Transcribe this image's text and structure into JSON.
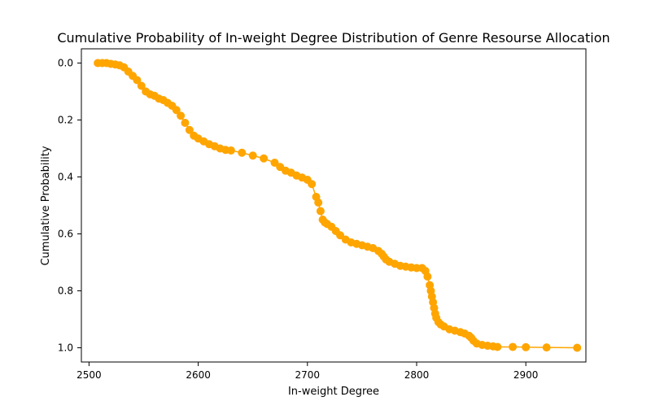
{
  "chart_data": {
    "type": "line",
    "title": "Cumulative Probability of In-weight Degree Distribution of Genre Resourse Allocation",
    "xlabel": "In-weight Degree",
    "ylabel": "Cumulative Probability",
    "xlim": [
      2493,
      2955
    ],
    "ylim": [
      1.05,
      -0.05
    ],
    "y_inverted": true,
    "x_ticks": [
      2500,
      2600,
      2700,
      2800,
      2900
    ],
    "x_tick_labels": [
      "2500",
      "2600",
      "2700",
      "2800",
      "2900"
    ],
    "y_ticks": [
      0.0,
      0.2,
      0.4,
      0.6,
      0.8,
      1.0
    ],
    "y_tick_labels": [
      "0.0",
      "0.2",
      "0.4",
      "0.6",
      "0.8",
      "1.0"
    ],
    "grid": false,
    "series": [
      {
        "name": "cumulative probability",
        "color": "#ffa500",
        "marker": "circle",
        "x": [
          2508,
          2512,
          2516,
          2520,
          2524,
          2528,
          2532,
          2536,
          2540,
          2544,
          2548,
          2552,
          2556,
          2560,
          2564,
          2568,
          2572,
          2576,
          2580,
          2584,
          2588,
          2592,
          2596,
          2600,
          2605,
          2610,
          2615,
          2620,
          2625,
          2630,
          2640,
          2650,
          2660,
          2670,
          2675,
          2680,
          2685,
          2690,
          2695,
          2700,
          2704,
          2708,
          2710,
          2712,
          2714,
          2716,
          2718,
          2722,
          2726,
          2730,
          2735,
          2740,
          2745,
          2750,
          2755,
          2760,
          2765,
          2768,
          2770,
          2772,
          2775,
          2780,
          2785,
          2790,
          2795,
          2800,
          2805,
          2808,
          2810,
          2812,
          2813,
          2814,
          2815,
          2816,
          2817,
          2818,
          2820,
          2822,
          2825,
          2830,
          2835,
          2840,
          2844,
          2848,
          2850,
          2852,
          2855,
          2860,
          2865,
          2870,
          2874,
          2888,
          2900,
          2919,
          2947
        ],
        "y": [
          0.0,
          0.0,
          0.0,
          0.003,
          0.005,
          0.008,
          0.015,
          0.03,
          0.045,
          0.06,
          0.08,
          0.1,
          0.11,
          0.115,
          0.125,
          0.13,
          0.14,
          0.15,
          0.165,
          0.185,
          0.21,
          0.235,
          0.255,
          0.265,
          0.275,
          0.285,
          0.292,
          0.3,
          0.305,
          0.307,
          0.315,
          0.325,
          0.335,
          0.35,
          0.365,
          0.378,
          0.385,
          0.395,
          0.402,
          0.41,
          0.425,
          0.47,
          0.49,
          0.52,
          0.55,
          0.56,
          0.565,
          0.575,
          0.59,
          0.605,
          0.62,
          0.63,
          0.635,
          0.64,
          0.645,
          0.65,
          0.66,
          0.67,
          0.68,
          0.69,
          0.698,
          0.705,
          0.712,
          0.715,
          0.718,
          0.72,
          0.72,
          0.73,
          0.75,
          0.78,
          0.8,
          0.82,
          0.84,
          0.86,
          0.88,
          0.895,
          0.91,
          0.918,
          0.925,
          0.935,
          0.94,
          0.945,
          0.95,
          0.958,
          0.965,
          0.975,
          0.985,
          0.99,
          0.993,
          0.995,
          0.997,
          0.997,
          0.998,
          0.999,
          1.0
        ]
      }
    ]
  }
}
